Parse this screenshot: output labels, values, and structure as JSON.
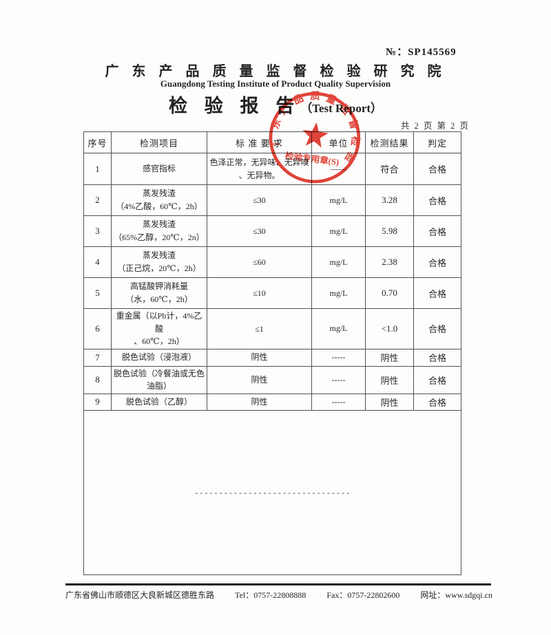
{
  "page": {
    "report_no_label": "№：",
    "report_no": "SP145569",
    "institute_cn": "广 东 产 品 质 量 监 督 检 验 研 究 院",
    "institute_en": "Guangdong Testing Institute of Product Quality Supervision",
    "report_title_cn": "检 验 报 告",
    "report_title_en": "（Test Report）",
    "page_indicator": "共 2 页 第 2 页",
    "end_dashes": "--------------------------------",
    "footer": {
      "address": "广东省佛山市顺德区大良新城区德胜东路",
      "tel": "Tel：0757-22808888",
      "fax": "Fax：0757-22802600",
      "website": "网址：www.sdgqi.cn"
    }
  },
  "stamp": {
    "ring_text": "广东产品质量监督检验研究院",
    "bottom_text": "检验专用章(S)",
    "color": "#dd2a1d"
  },
  "table": {
    "headers": [
      "序号",
      "检测项目",
      "标 准 要 求",
      "单位",
      "检测结果",
      "判定"
    ],
    "rows": [
      {
        "no": "1",
        "item": [
          "感官指标"
        ],
        "requirement": [
          "色泽正常，无异味、无异嗅",
          "、无异物。"
        ],
        "unit": "——",
        "result": "符合",
        "verdict": "合格"
      },
      {
        "no": "2",
        "item": [
          "蒸发残渣",
          "（4%乙酸，60℃，2h）"
        ],
        "requirement": [
          "≤30"
        ],
        "unit": "mg/L",
        "result": "3.28",
        "verdict": "合格"
      },
      {
        "no": "3",
        "item": [
          "蒸发残渣",
          "（65%乙醇，20℃，2n）"
        ],
        "requirement": [
          "≤30"
        ],
        "unit": "mg/L",
        "result": "5.98",
        "verdict": "合格"
      },
      {
        "no": "4",
        "item": [
          "蒸发残渣",
          "（正己烷，20℃，2h）"
        ],
        "requirement": [
          "≤60"
        ],
        "unit": "mg/L",
        "result": "2.38",
        "verdict": "合格"
      },
      {
        "no": "5",
        "item": [
          "高锰酸钾消耗量",
          "（水，60℃，2h）"
        ],
        "requirement": [
          "≤10"
        ],
        "unit": "mg/L",
        "result": "0.70",
        "verdict": "合格"
      },
      {
        "no": "6",
        "item": [
          "重金属（以Pb计，4%乙酸",
          "、60℃，2h）"
        ],
        "requirement": [
          "≤1"
        ],
        "unit": "mg/L",
        "result": "<1.0",
        "verdict": "合格"
      },
      {
        "no": "7",
        "item": [
          "脱色试验（浸泡液）"
        ],
        "requirement": [
          "阴性"
        ],
        "unit": "-----",
        "result": "阴性",
        "verdict": "合格"
      },
      {
        "no": "8",
        "item": [
          "脱色试验（冷餐油或无色",
          "油脂）"
        ],
        "requirement": [
          "阴性"
        ],
        "unit": "-----",
        "result": "阴性",
        "verdict": "合格"
      },
      {
        "no": "9",
        "item": [
          "脱色试验（乙醇）"
        ],
        "requirement": [
          "阴性"
        ],
        "unit": "-----",
        "result": "阴性",
        "verdict": "合格"
      }
    ]
  }
}
